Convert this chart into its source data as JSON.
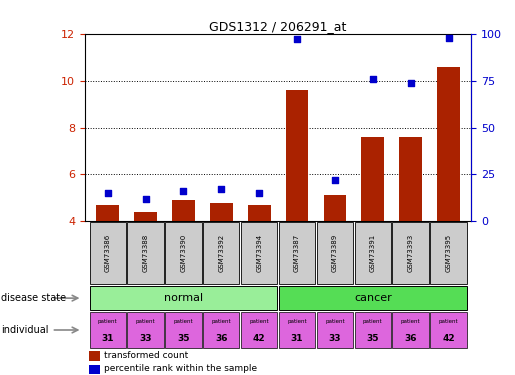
{
  "title": "GDS1312 / 206291_at",
  "samples": [
    "GSM73386",
    "GSM73388",
    "GSM73390",
    "GSM73392",
    "GSM73394",
    "GSM73387",
    "GSM73389",
    "GSM73391",
    "GSM73393",
    "GSM73395"
  ],
  "transformed_counts": [
    4.7,
    4.4,
    4.9,
    4.8,
    4.7,
    9.6,
    5.1,
    7.6,
    7.6,
    10.6
  ],
  "percentile_ranks": [
    15,
    12,
    16,
    17,
    15,
    97,
    22,
    76,
    74,
    98
  ],
  "ylim_left": [
    4,
    12
  ],
  "ylim_right": [
    0,
    100
  ],
  "yticks_left": [
    4,
    6,
    8,
    10,
    12
  ],
  "yticks_right": [
    0,
    25,
    50,
    75,
    100
  ],
  "bar_color": "#aa2200",
  "scatter_color": "#0000cc",
  "individuals": [
    31,
    33,
    35,
    36,
    42,
    31,
    33,
    35,
    36,
    42
  ],
  "normal_color": "#99ee99",
  "cancer_color": "#55dd55",
  "individual_color": "#dd66dd",
  "sample_box_color": "#cccccc",
  "left_axis_color": "#cc2200",
  "right_axis_color": "#0000cc",
  "legend_red_label": "transformed count",
  "legend_blue_label": "percentile rank within the sample",
  "disease_state_label": "disease state",
  "individual_label": "individual"
}
